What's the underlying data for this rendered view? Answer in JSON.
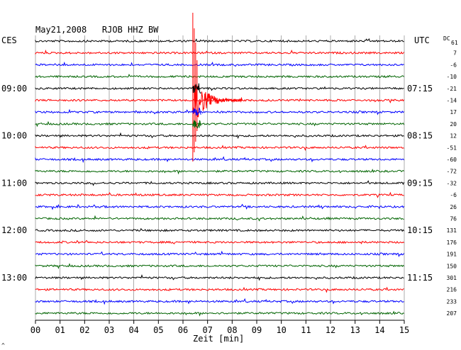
{
  "header": {
    "title": "May21,2008   RJOB HHZ BW",
    "left_tz": "CES",
    "right_tz": "UTC",
    "dc_label": "DC",
    "dc_sub": "61"
  },
  "colors": {
    "cycle": [
      "#000000",
      "#ff0000",
      "#0000ff",
      "#006400"
    ],
    "grid": "#000000",
    "background": "#ffffff"
  },
  "chart_data": {
    "type": "line",
    "title": "May21,2008   RJOB HHZ BW",
    "xlabel": "Zeit [min]",
    "ylabel": "",
    "xlim": [
      0,
      15
    ],
    "x_ticks": [
      "00",
      "01",
      "02",
      "03",
      "04",
      "05",
      "06",
      "07",
      "08",
      "09",
      "10",
      "11",
      "12",
      "13",
      "14",
      "15"
    ],
    "trace_count": 24,
    "trace_minutes": 15,
    "left_time_labels": [
      {
        "trace": 4,
        "label": "09:00"
      },
      {
        "trace": 8,
        "label": "10:00"
      },
      {
        "trace": 12,
        "label": "11:00"
      },
      {
        "trace": 16,
        "label": "12:00"
      },
      {
        "trace": 20,
        "label": "13:00"
      }
    ],
    "right_time_labels": [
      {
        "trace": 4,
        "label": "07:15"
      },
      {
        "trace": 8,
        "label": "08:15"
      },
      {
        "trace": 12,
        "label": "09:15"
      },
      {
        "trace": 16,
        "label": "10:15"
      },
      {
        "trace": 20,
        "label": "11:15"
      }
    ],
    "dc_offsets": [
      "7",
      "-6",
      "-10",
      "-21",
      "-14",
      "17",
      "20",
      "12",
      "-51",
      "-60",
      "-72",
      "-32",
      "-6",
      "26",
      "76",
      "131",
      "176",
      "191",
      "150",
      "301",
      "216",
      "233",
      "207"
    ],
    "events": [
      {
        "trace": 5,
        "minute": 6.4,
        "type": "earthquake",
        "duration_min": 2.0
      }
    ],
    "grid": true
  },
  "footer": {
    "corner_mark": "^"
  }
}
